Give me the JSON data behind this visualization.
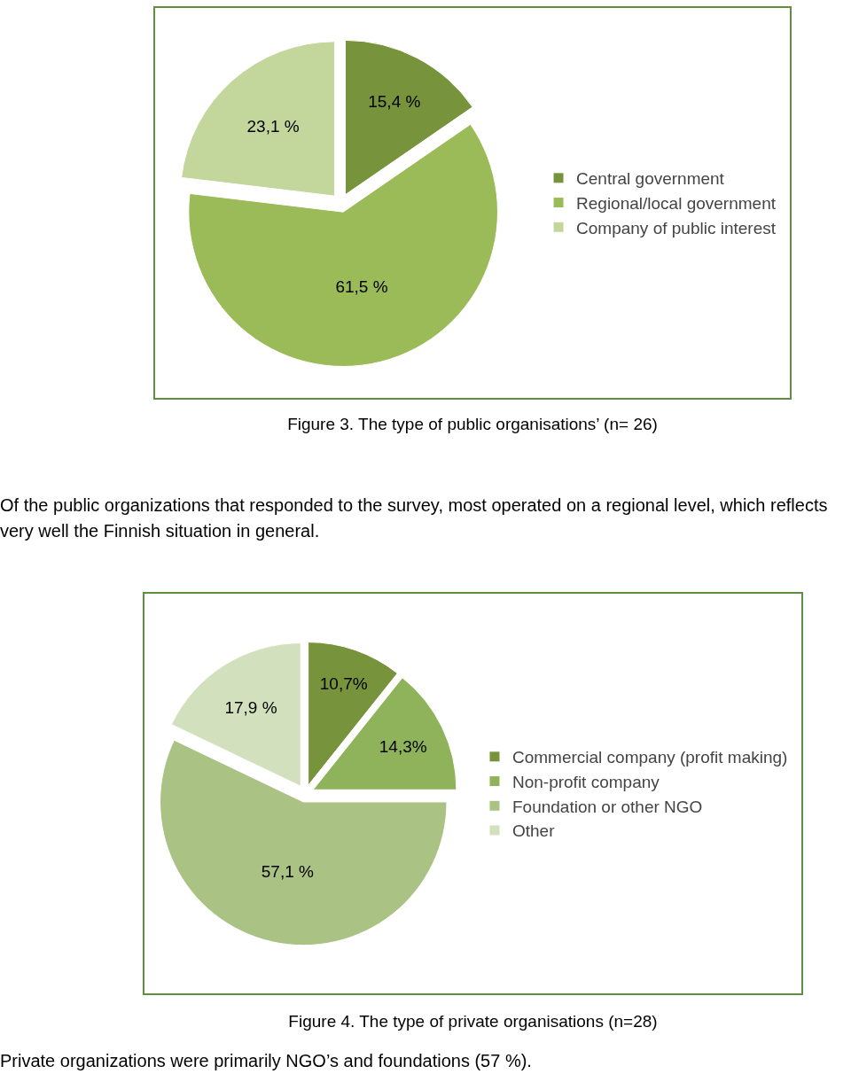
{
  "chart_data": [
    {
      "type": "pie",
      "categories": [
        "Central government",
        "Regional/local government",
        "Company of public interest"
      ],
      "values": [
        15.4,
        61.5,
        23.1
      ],
      "colors": [
        "#77933c",
        "#9bbb59",
        "#c3d69b"
      ],
      "value_labels": [
        "15,4 %",
        "61,5 %",
        "23,1 %"
      ],
      "legend": "right",
      "annotations": [
        "Figure 3. The type of public organisations’ (n= 26)",
        "Of the public organizations that responded to the survey, most operated on a regional level, which reflects very well the Finnish situation in general."
      ]
    },
    {
      "type": "pie",
      "categories": [
        "Commercial company (profit making)",
        "Non-profit company",
        "Foundation or other NGO",
        "Other"
      ],
      "values": [
        10.7,
        14.3,
        57.1,
        17.9
      ],
      "colors": [
        "#77933c",
        "#8fb35a",
        "#aac384",
        "#d3e0bd"
      ],
      "value_labels": [
        "10,7%",
        "14,3%",
        "57,1 %",
        "17,9 %"
      ],
      "legend": "right",
      "annotations": [
        "Figure 4. The type of private organisations (n=28)",
        "Private organizations were primarily NGO’s and foundations (57 %)."
      ]
    }
  ]
}
